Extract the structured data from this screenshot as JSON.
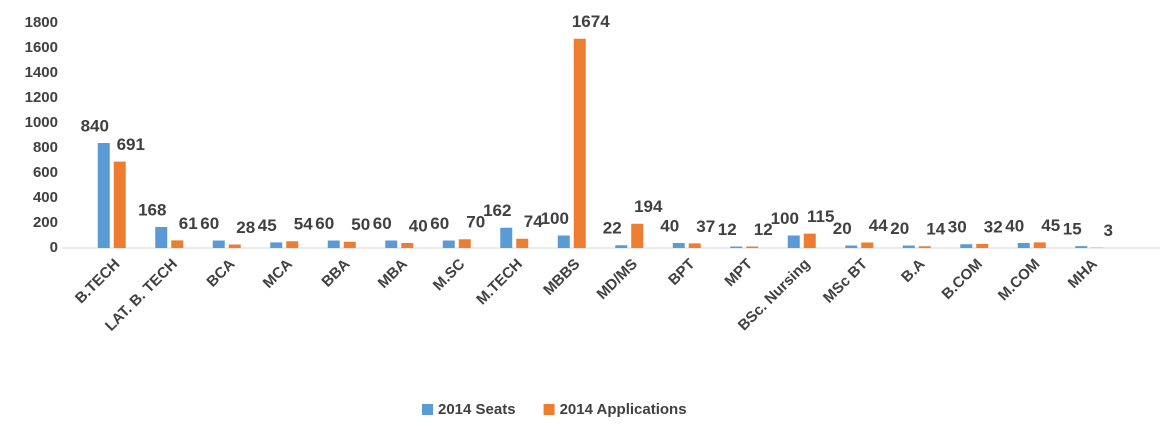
{
  "chart_data": {
    "type": "bar",
    "categories": [
      "B.TECH",
      "LAT. B. TECH",
      "BCA",
      "MCA",
      "BBA",
      "MBA",
      "M.SC",
      "M.TECH",
      "MBBS",
      "MD/MS",
      "BPT",
      "MPT",
      "BSc. Nursing",
      "MSc BT",
      "B.A",
      "B.COM",
      "M.COM",
      "MHA"
    ],
    "series": [
      {
        "name": "2014 Seats",
        "color": "#5b9bd5",
        "values": [
          840,
          168,
          60,
          45,
          60,
          60,
          60,
          162,
          100,
          22,
          40,
          12,
          100,
          20,
          20,
          30,
          40,
          15
        ]
      },
      {
        "name": "2014 Applications",
        "color": "#ed7d31",
        "values": [
          691,
          61,
          28,
          54,
          50,
          40,
          70,
          74,
          1674,
          194,
          37,
          12,
          115,
          44,
          14,
          32,
          45,
          3
        ]
      }
    ],
    "ylim": [
      0,
      1800
    ],
    "yticks": [
      0,
      200,
      400,
      600,
      800,
      1000,
      1200,
      1400,
      1600,
      1800
    ],
    "grid": false,
    "legend": "bottom"
  }
}
